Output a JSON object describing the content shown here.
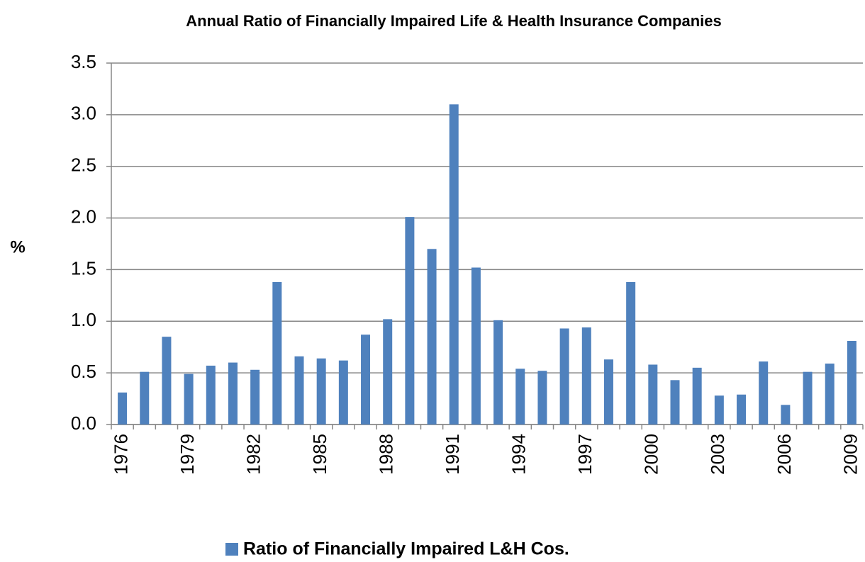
{
  "chart_data": {
    "type": "bar",
    "title": "Annual Ratio of Financially Impaired Life & Health Insurance Companies",
    "y_label": "%",
    "categories": [
      "1976",
      null,
      null,
      "1979",
      null,
      null,
      "1982",
      null,
      null,
      "1985",
      null,
      null,
      "1988",
      null,
      null,
      "1991",
      null,
      null,
      "1994",
      null,
      null,
      "1997",
      null,
      null,
      "2000",
      null,
      null,
      "2003",
      null,
      null,
      "2006",
      null,
      null,
      "2009"
    ],
    "series": [
      {
        "name": "Ratio of Financially Impaired L&H Cos.",
        "color": "#4f81bd",
        "values": [
          0.31,
          0.51,
          0.85,
          0.49,
          0.57,
          0.6,
          0.53,
          1.38,
          0.66,
          0.64,
          0.62,
          0.87,
          1.02,
          2.01,
          1.7,
          3.1,
          1.52,
          1.01,
          0.54,
          0.52,
          0.93,
          0.94,
          0.63,
          1.38,
          0.58,
          0.43,
          0.55,
          0.28,
          0.29,
          0.61,
          0.19,
          0.51,
          0.59,
          0.81
        ]
      }
    ],
    "ylim": [
      0,
      3.5
    ],
    "yticks": [
      {
        "value": 0,
        "label": "0.0"
      },
      0.5,
      {
        "value": 1,
        "label": "1.0"
      },
      1.5,
      {
        "value": 2,
        "label": "2.0"
      },
      2.5,
      {
        "value": 3,
        "label": "3.0"
      },
      3.5
    ],
    "grid": true,
    "legend": "bottom"
  }
}
